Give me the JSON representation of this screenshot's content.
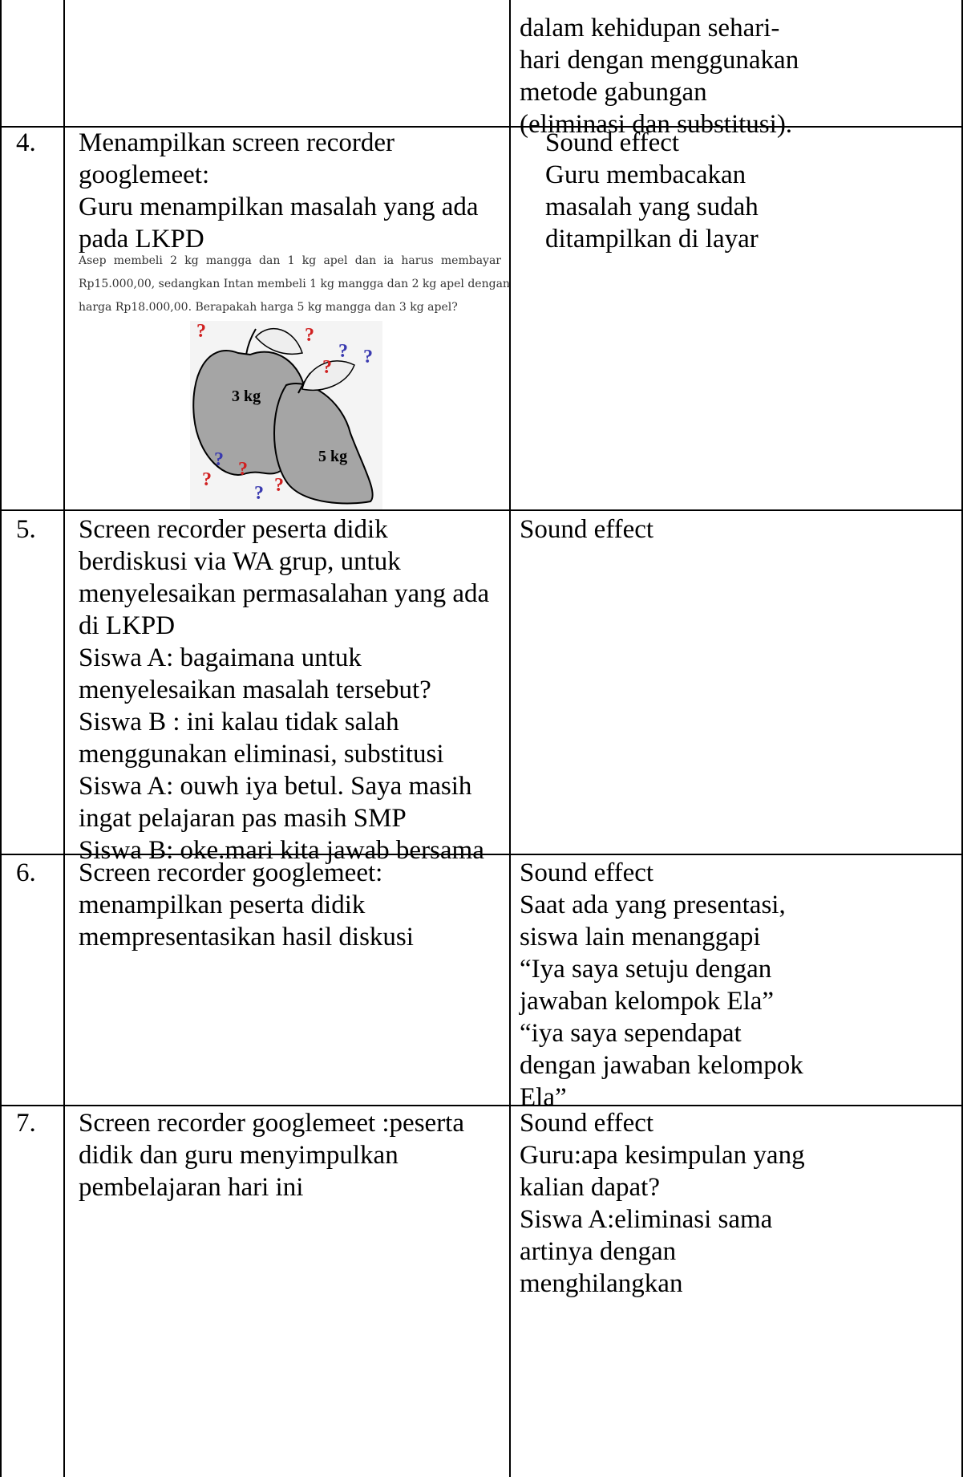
{
  "table": {
    "rows": [
      {
        "notes": [
          "dalam kehidupan sehari-",
          "hari dengan menggunakan",
          "metode gabungan",
          "(eliminasi dan substitusi)."
        ]
      },
      {
        "number": "4.",
        "content": [
          "Menampilkan screen recorder",
          "googlemeet:",
          "Guru menampilkan masalah yang ada",
          "pada LKPD"
        ],
        "excerpt": {
          "text": [
            "Asep membeli 2 kg mangga dan 1 kg apel dan ia harus membayar",
            "Rp15.000,00, sedangkan Intan membeli 1 kg mangga dan 2 kg apel dengan",
            "harga Rp18.000,00. Berapakah harga 5 kg mangga dan 3 kg apel?"
          ],
          "labels": [
            "3 kg",
            "5 kg"
          ],
          "question_marks": [
            "?",
            "?",
            "?",
            "?",
            "?",
            "?",
            "?",
            "?",
            "?",
            "?"
          ]
        },
        "notes": [
          "Sound effect",
          "Guru membacakan",
          "masalah yang sudah",
          "ditampilkan di layar"
        ]
      },
      {
        "number": "5.",
        "content": [
          "Screen recorder peserta didik",
          "berdiskusi via WA grup, untuk",
          "menyelesaikan permasalahan yang ada",
          "di LKPD",
          "Siswa A: bagaimana untuk",
          "menyelesaikan masalah tersebut?",
          "Siswa B : ini kalau tidak salah",
          "menggunakan eliminasi, substitusi",
          "Siswa A: ouwh iya betul. Saya masih",
          "ingat pelajaran pas masih SMP",
          "Siswa B: oke.mari kita jawab bersama"
        ],
        "notes": [
          "Sound effect"
        ]
      },
      {
        "number": "6.",
        "content": [
          "Screen recorder googlemeet:",
          "menampilkan peserta didik",
          "mempresentasikan hasil diskusi"
        ],
        "notes": [
          "Sound effect",
          "Saat ada yang presentasi,",
          "siswa lain menanggapi",
          "“Iya saya setuju dengan",
          "jawaban kelompok Ela”",
          "“iya saya sependapat",
          "dengan jawaban kelompok",
          "Ela”"
        ]
      },
      {
        "number": "7.",
        "content": [
          "Screen recorder googlemeet :peserta",
          "didik dan guru menyimpulkan",
          "pembelajaran hari ini"
        ],
        "notes": [
          "Sound effect",
          "Guru:apa kesimpulan yang",
          "kalian dapat?",
          "Siswa A:eliminasi sama",
          "artinya dengan",
          "menghilangkan"
        ]
      }
    ]
  }
}
